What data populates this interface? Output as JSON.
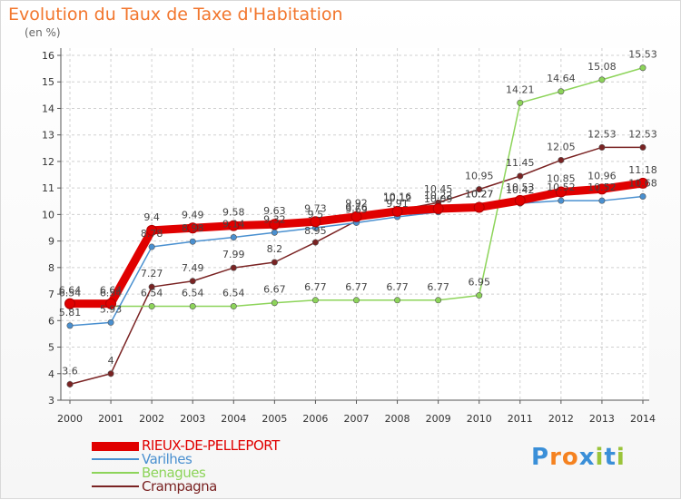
{
  "chart_data": {
    "type": "line",
    "title": "Evolution du Taux de Taxe d'Habitation",
    "ylabel": "(en %)",
    "xlabel": "",
    "ylim": [
      3,
      16
    ],
    "yticks": [
      "3",
      "4",
      "5",
      "6",
      "7",
      "8",
      "9",
      "10",
      "11",
      "12",
      "13",
      "14",
      "15",
      "16"
    ],
    "categories": [
      "2000",
      "2001",
      "2002",
      "2003",
      "2004",
      "2005",
      "2006",
      "2007",
      "2008",
      "2009",
      "2010",
      "2011",
      "2012",
      "2013",
      "2014"
    ],
    "series": [
      {
        "name": "RIEUX-DE-PELLEPORT",
        "color": "#e00000",
        "values": [
          6.64,
          6.64,
          9.4,
          9.49,
          9.58,
          9.63,
          9.73,
          9.92,
          10.12,
          10.22,
          10.27,
          10.53,
          10.85,
          10.96,
          11.18
        ],
        "labels": [
          "6.64",
          "6.64",
          "9.4",
          "9.49",
          "9.58",
          "9.63",
          "9.73",
          "9.92",
          "10.12",
          "10.22",
          "10.27",
          "10.53",
          "10.85",
          "10.96",
          "11.18"
        ]
      },
      {
        "name": "Varilhes",
        "color": "#4a90d0",
        "values": [
          5.81,
          5.93,
          8.78,
          8.98,
          9.14,
          9.32,
          9.5,
          9.69,
          9.91,
          10.09,
          10.27,
          10.42,
          10.52,
          10.52,
          10.68
        ],
        "labels": [
          "5.81",
          "5.93",
          "8.78",
          "8.98",
          "9.14",
          "9.32",
          "9.5",
          "9.69",
          "9.91",
          "10.09",
          "10.27",
          "10.42",
          "10.52",
          "10.52",
          "10.68"
        ]
      },
      {
        "name": "Benagues",
        "color": "#8dd45a",
        "values": [
          6.54,
          6.54,
          6.54,
          6.54,
          6.54,
          6.67,
          6.77,
          6.77,
          6.77,
          6.77,
          6.95,
          14.21,
          14.64,
          15.08,
          15.53
        ],
        "labels": [
          "6.54",
          "6.54",
          "6.54",
          "6.54",
          "6.54",
          "6.67",
          "6.77",
          "6.77",
          "6.77",
          "6.77",
          "6.95",
          "14.21",
          "14.64",
          "15.08",
          "15.53"
        ]
      },
      {
        "name": "Crampagna",
        "color": "#7a2323",
        "values": [
          3.6,
          4,
          7.27,
          7.49,
          7.99,
          8.2,
          8.95,
          9.76,
          10.16,
          10.45,
          10.95,
          11.45,
          12.05,
          12.53,
          12.53
        ],
        "labels": [
          "3.6",
          "4",
          "7.27",
          "7.49",
          "7.99",
          "8.2",
          "8.95",
          "9.76",
          "10.16",
          "10.45",
          "10.95",
          "11.45",
          "12.05",
          "12.53",
          "12.53"
        ]
      }
    ]
  },
  "brand": {
    "letters": [
      "P",
      "r",
      "o",
      "x",
      "i",
      "t",
      "i"
    ]
  }
}
